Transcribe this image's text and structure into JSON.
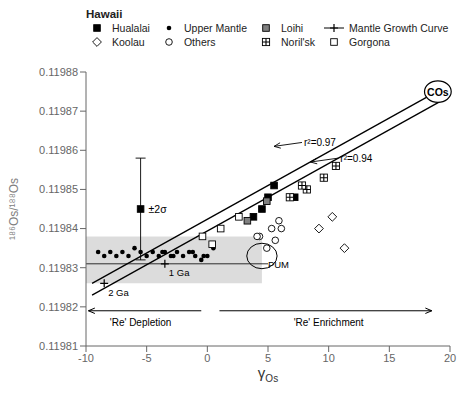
{
  "chart_data": {
    "type": "scatter",
    "x_label": "γOs",
    "y_label": "¹⁸⁶Os/¹⁸⁸Os",
    "xlim": [
      -10,
      20
    ],
    "ylim": [
      0.11981,
      0.11988
    ],
    "xticks": [
      -10,
      -5,
      0,
      5,
      10,
      15,
      20
    ],
    "yticks": [
      0.11981,
      0.11982,
      0.11983,
      0.11984,
      0.11985,
      0.11986,
      0.11987,
      0.11988
    ],
    "legend": "top",
    "legend_title": "Hawaii",
    "series": [
      {
        "name": "Hualalai",
        "type": "scatter",
        "marker": "square",
        "color": "#000000",
        "x": [
          3.8,
          5.0,
          5.5,
          7.2,
          4.5
        ],
        "values": [
          0.119843,
          0.119848,
          0.119851,
          0.119848,
          0.119845
        ]
      },
      {
        "name": "Upper Mantle",
        "type": "scatter",
        "marker": "dot",
        "color": "#000000",
        "x": [
          -9.0,
          -8.5,
          -8.0,
          -7.5,
          -7.0,
          -6.5,
          -6.0,
          -5.5,
          -5.0,
          -4.5,
          -4.0,
          -3.5,
          -3.0,
          -2.5,
          -2.0,
          -1.5,
          -1.0,
          -0.5,
          0.0,
          0.5,
          -2.8,
          -1.2,
          -0.3,
          -3.7
        ],
        "values": [
          0.119834,
          0.119833,
          0.119834,
          0.119833,
          0.119834,
          0.119833,
          0.119835,
          0.119834,
          0.119833,
          0.119834,
          0.119833,
          0.119834,
          0.119833,
          0.119834,
          0.119833,
          0.119834,
          0.119833,
          0.119832,
          0.119833,
          0.119835,
          0.119833,
          0.119834,
          0.119833,
          0.119834
        ]
      },
      {
        "name": "Loihi",
        "type": "scatter",
        "marker": "square",
        "color": "#808080",
        "x": [
          3.3,
          4.9
        ],
        "values": [
          0.119842,
          0.119847
        ]
      },
      {
        "name": "Mantle Growth Curve",
        "type": "line",
        "marker": "plus",
        "color": "#000000",
        "x": [
          -10,
          5
        ],
        "values": [
          0.119831,
          0.119831
        ]
      },
      {
        "name": "Koolau",
        "type": "scatter",
        "marker": "diamond",
        "color": "#ffffff",
        "x": [
          9.2,
          11.3,
          10.3
        ],
        "values": [
          0.11984,
          0.119835,
          0.119843
        ]
      },
      {
        "name": "Others",
        "type": "scatter",
        "marker": "circle",
        "color": "#ffffff",
        "x": [
          4.3,
          5.6,
          6.1,
          4.9,
          5.3,
          5.9,
          4.1
        ],
        "values": [
          0.119838,
          0.119837,
          0.11984,
          0.119835,
          0.11984,
          0.119842,
          0.119838
        ]
      },
      {
        "name": "Noril'sk",
        "type": "scatter",
        "marker": "plus-square",
        "color": "#ffffff",
        "x": [
          8.2,
          9.6,
          10.6,
          6.8,
          7.8
        ],
        "values": [
          0.11985,
          0.119853,
          0.119856,
          0.119848,
          0.119851
        ]
      },
      {
        "name": "Gorgona",
        "type": "scatter",
        "marker": "square",
        "color": "#ffffff",
        "x": [
          -0.4,
          1.1,
          2.6,
          0.4
        ],
        "values": [
          0.119838,
          0.11984,
          0.119843,
          0.119836
        ]
      },
      {
        "type": "line",
        "color": "#000000",
        "x": [
          -9.5,
          19.5
        ],
        "values": [
          0.119826,
          0.119876
        ]
      },
      {
        "type": "line",
        "color": "#000000",
        "x": [
          -9.5,
          19.5
        ],
        "values": [
          0.119823,
          0.119873
        ]
      },
      {
        "type": "scatter",
        "marker": "square",
        "color": "#000000",
        "label": "±2σ",
        "x": [
          -5.5
        ],
        "values": [
          0.119845
        ],
        "errors": [
          1.3e-05
        ]
      }
    ],
    "shaded_region": {
      "x": [
        -10,
        4.5
      ],
      "y": [
        0.119826,
        0.119838
      ],
      "color": "#d3d3d3"
    },
    "ellipses": [
      {
        "label": "PUM",
        "x": 4.5,
        "y": 0.119833,
        "width": 2.5,
        "height": 6.5e-06
      },
      {
        "label": "COs",
        "x": 19.0,
        "y": 0.119875,
        "width": 2.2,
        "height": 5.5e-06,
        "color": "#ffffff"
      }
    ],
    "annotations": [
      {
        "text": "r²=0.97",
        "x": 7.8,
        "y": 0.119862,
        "arrow_to": [
          5.5,
          0.119861
        ]
      },
      {
        "text": "r²=0.94",
        "x": 10.8,
        "y": 0.119858,
        "arrow_to": [
          8.5,
          0.119857
        ]
      },
      {
        "text": "1 Ga",
        "x": -3.5,
        "y": 0.119831,
        "marker": "plus"
      },
      {
        "text": "2 Ga",
        "x": -8.5,
        "y": 0.119826,
        "marker": "plus"
      },
      {
        "text": "'Re' Depletion",
        "x": -5.5,
        "y": 0.119817
      },
      {
        "text": "'Re' Enrichment",
        "x": 10.0,
        "y": 0.119817
      }
    ],
    "arrows": [
      {
        "from": [
          -0.5,
          0.119819
        ],
        "to": [
          -9.8,
          0.119819
        ]
      },
      {
        "from": [
          1.0,
          0.119819
        ],
        "to": [
          18.5,
          0.119819
        ]
      }
    ]
  }
}
